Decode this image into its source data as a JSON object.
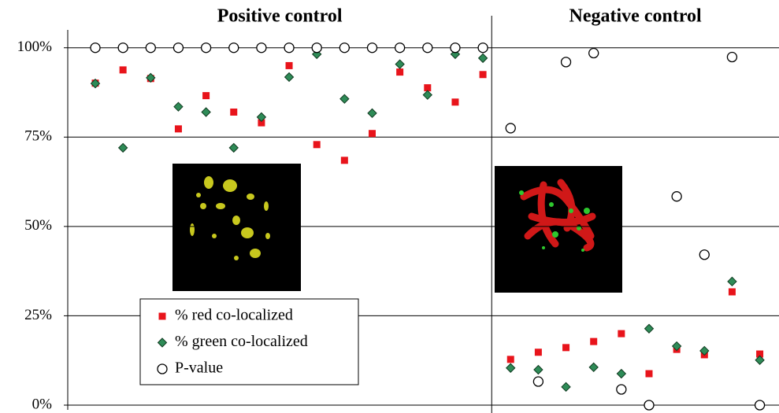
{
  "chart_data": {
    "type": "scatter",
    "ylim": [
      0,
      105
    ],
    "yticks": [
      {
        "value": 0,
        "label": "0%"
      },
      {
        "value": 25,
        "label": "25%"
      },
      {
        "value": 50,
        "label": "50%"
      },
      {
        "value": 75,
        "label": "75%"
      },
      {
        "value": 100,
        "label": "100%"
      }
    ],
    "grid": true,
    "legend": [
      {
        "name": "% red co-localized",
        "color": "#e8141b",
        "marker": "square"
      },
      {
        "name": "% green co-localized",
        "color": "#2e8b57",
        "marker": "diamond"
      },
      {
        "name": "P-value",
        "color": "#ffffff",
        "marker": "circle"
      }
    ],
    "groups": [
      {
        "title": "Positive control",
        "series": [
          {
            "values": [
              90.1,
              93.8,
              91.4,
              77.3,
              86.6,
              82,
              79,
              95,
              72.9,
              68.5,
              76,
              93.2,
              88.8,
              84.8,
              92.5
            ]
          },
          {
            "values": [
              90,
              72,
              91.6,
              83.5,
              82,
              72,
              80.6,
              91.8,
              98.2,
              85.7,
              81.7,
              95.4,
              86.8,
              98.2,
              97.1
            ]
          },
          {
            "values": [
              100,
              100,
              100,
              100,
              100,
              100,
              100,
              100,
              100,
              100,
              100,
              100,
              100,
              100,
              100
            ]
          }
        ]
      },
      {
        "title": "Negative control",
        "series": [
          {
            "values": [
              12.8,
              14.8,
              16.1,
              17.8,
              20,
              8.8,
              15.6,
              14.1,
              31.7,
              14.3
            ]
          },
          {
            "values": [
              10.4,
              9.9,
              5.1,
              10.6,
              8.8,
              21.4,
              16.5,
              15.2,
              34.6,
              12.6
            ]
          },
          {
            "values": [
              77.5,
              6.6,
              96,
              98.5,
              4.4,
              0,
              58.4,
              42.1,
              97.4,
              0
            ]
          }
        ]
      }
    ]
  }
}
